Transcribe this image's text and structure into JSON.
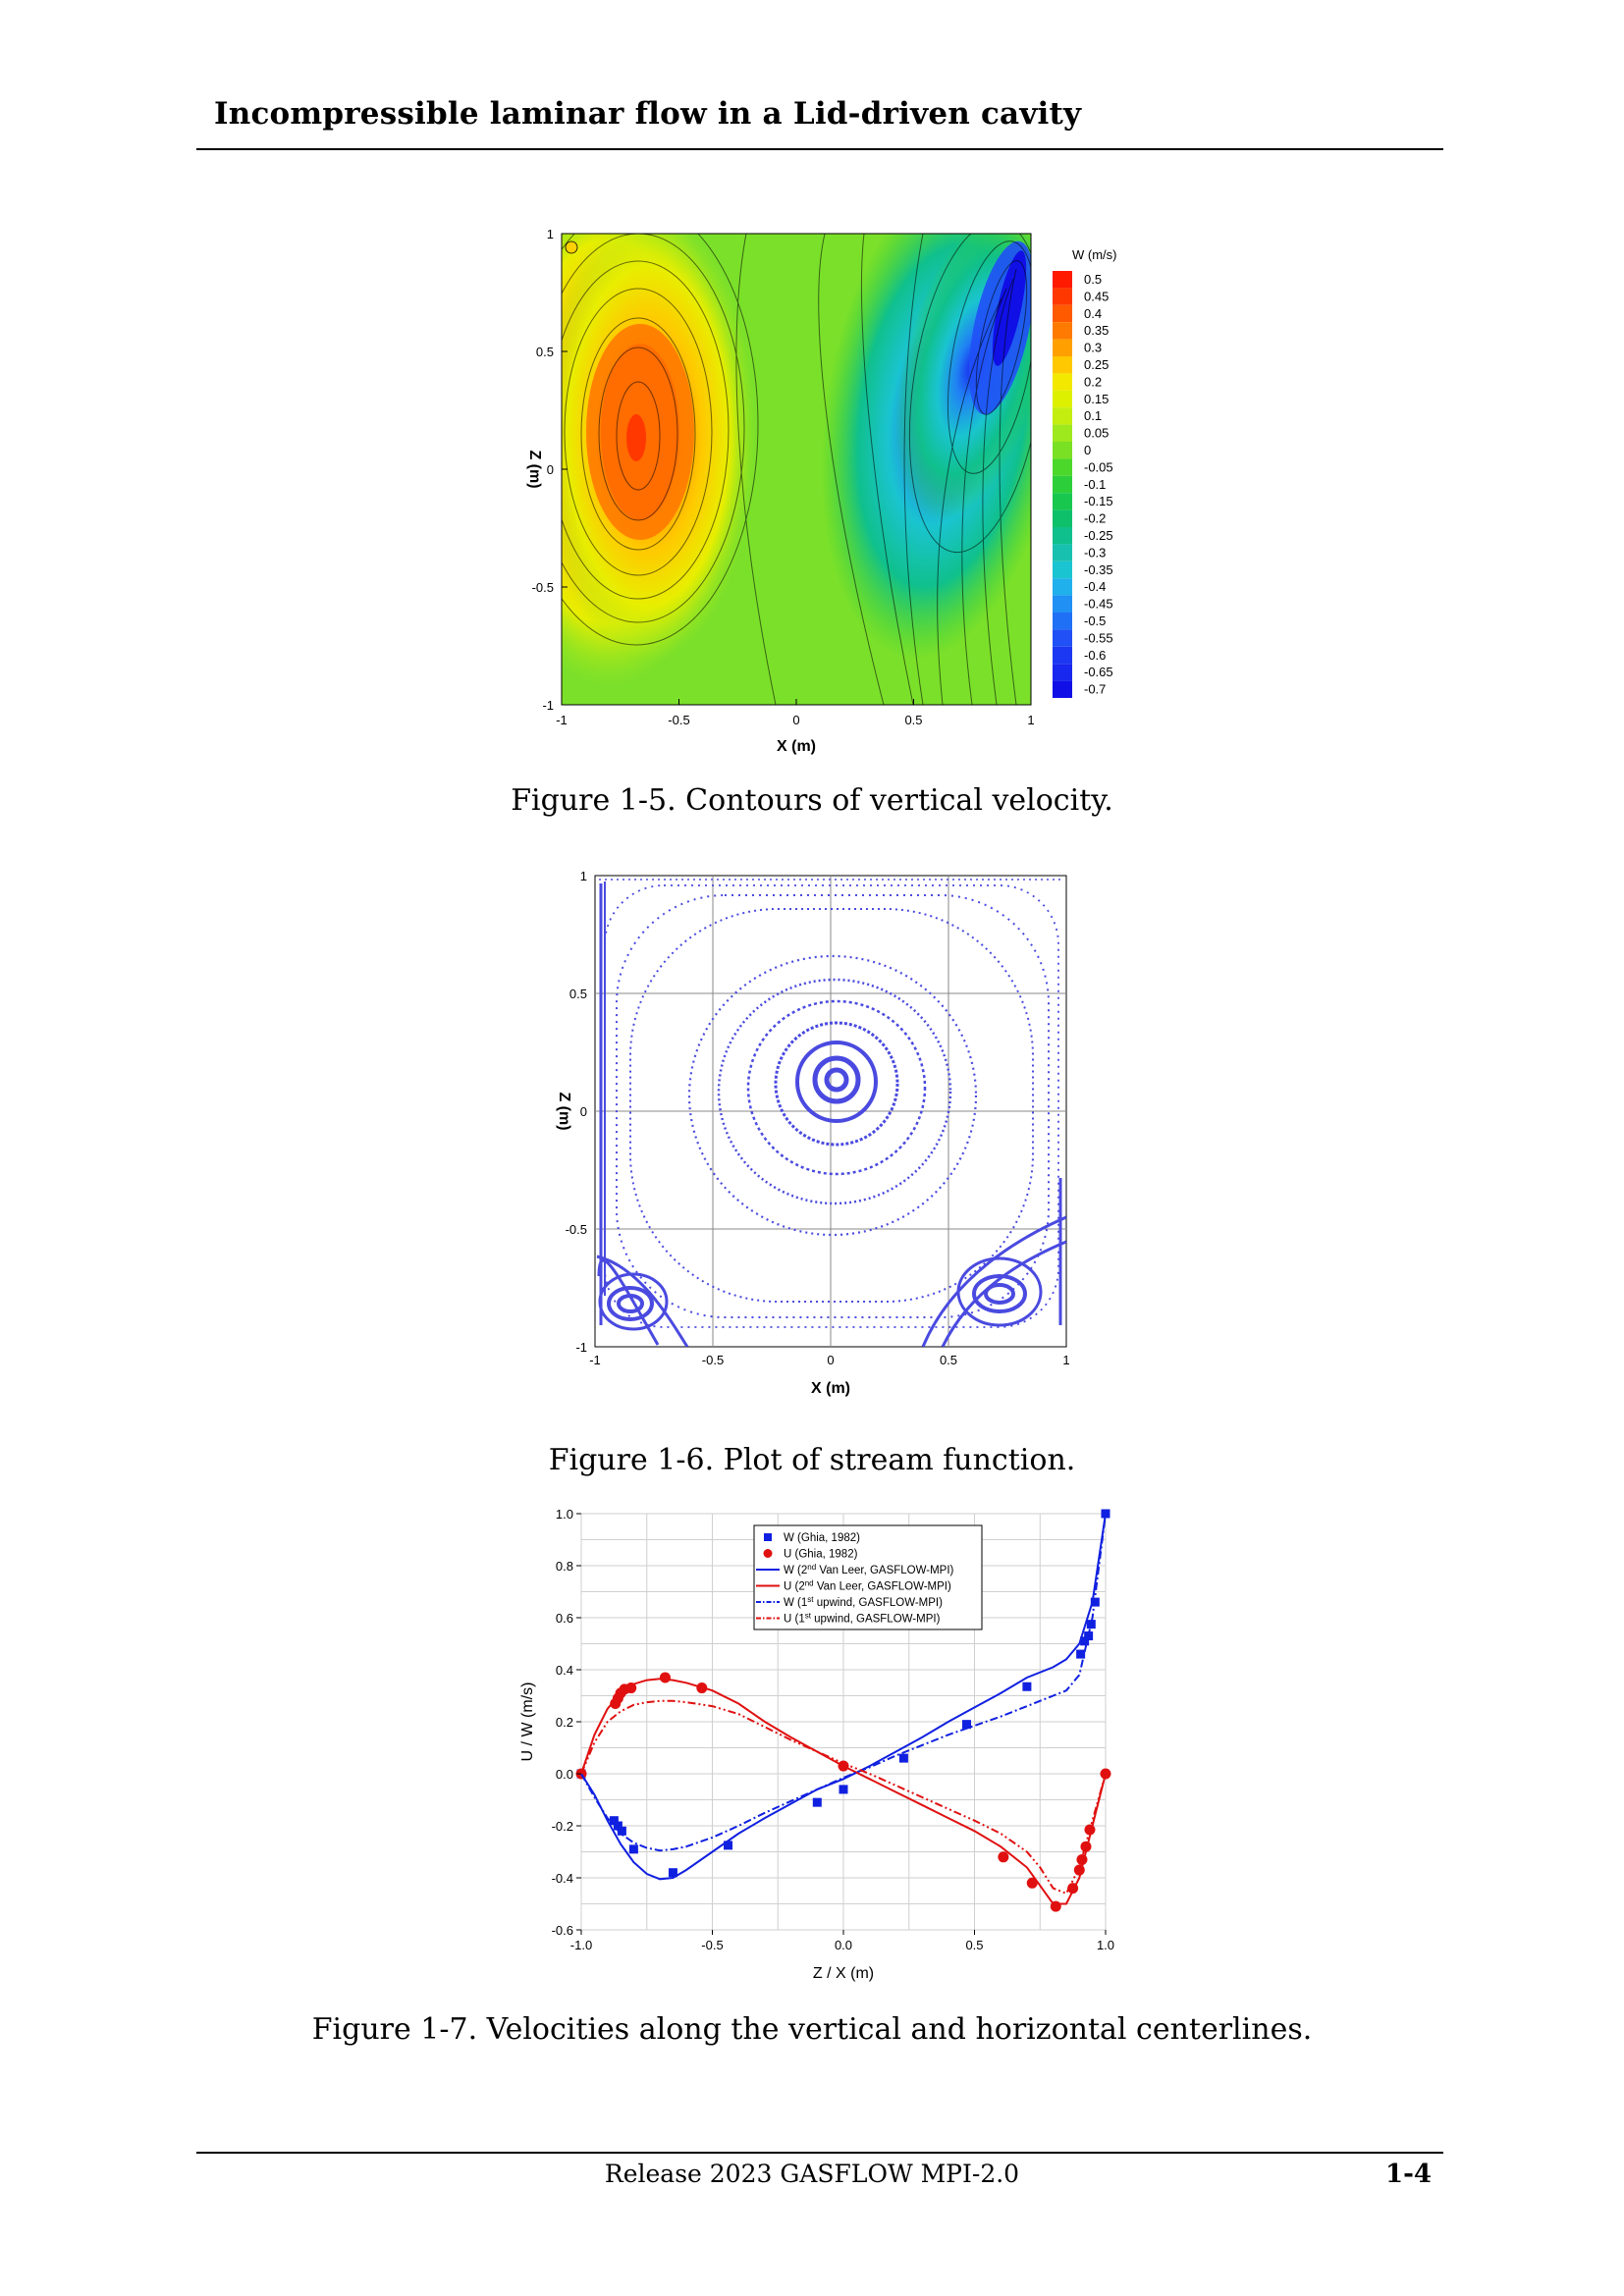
{
  "header": {
    "title": "Incompressible laminar flow in a Lid-driven cavity"
  },
  "figures": [
    {
      "id": "fig-1-5",
      "caption": "Figure 1-5. Contours of vertical velocity.",
      "xlabel": "X (m)",
      "ylabel": "Z (m)",
      "xticks": [
        "-1",
        "-0.5",
        "0",
        "0.5",
        "1"
      ],
      "yticks": [
        "1",
        "0.5",
        "0",
        "-0.5",
        "-1"
      ],
      "legend_title": "W (m/s)",
      "legend_levels": [
        "0.5",
        "0.45",
        "0.4",
        "0.35",
        "0.3",
        "0.25",
        "0.2",
        "0.15",
        "0.1",
        "0.05",
        "0",
        "-0.05",
        "-0.1",
        "-0.15",
        "-0.2",
        "-0.25",
        "-0.3",
        "-0.35",
        "-0.4",
        "-0.45",
        "-0.5",
        "-0.55",
        "-0.6",
        "-0.65",
        "-0.7"
      ],
      "legend_colors": [
        "#ff1a00",
        "#ff3800",
        "#ff5a00",
        "#ff7a00",
        "#ffa000",
        "#ffc800",
        "#f2e800",
        "#ddf000",
        "#c3ee10",
        "#9ee81e",
        "#79e024",
        "#4cd82a",
        "#2ccf3a",
        "#18c84e",
        "#0fc06a",
        "#10c08c",
        "#18c0b0",
        "#1ac4d0",
        "#20b0ec",
        "#2090f4",
        "#2070f6",
        "#2050f6",
        "#1c38f2",
        "#1828ee",
        "#1010e6"
      ]
    },
    {
      "id": "fig-1-6",
      "caption": "Figure 1-6. Plot of stream function.",
      "xlabel": "X (m)",
      "ylabel": "Z (m)",
      "xticks": [
        "-1",
        "-0.5",
        "0",
        "0.5",
        "1"
      ],
      "yticks": [
        "1",
        "0.5",
        "0",
        "-0.5",
        "-1"
      ]
    },
    {
      "id": "fig-1-7",
      "caption": "Figure 1-7. Velocities along the vertical and horizontal centerlines.",
      "xlabel": "Z / X (m)",
      "ylabel": "U / W (m/s)",
      "xticks": [
        "-1.0",
        "-0.5",
        "0.0",
        "0.5",
        "1.0"
      ],
      "yticks": [
        "1.0",
        "0.8",
        "0.6",
        "0.4",
        "0.2",
        "0.0",
        "-0.2",
        "-0.4",
        "-0.6"
      ],
      "legend": [
        {
          "label": "W (Ghia, 1982)",
          "sup": "",
          "rest": "",
          "color": "#1020e0",
          "style": "square"
        },
        {
          "label": "U  (Ghia, 1982)",
          "sup": "",
          "rest": "",
          "color": "#e01010",
          "style": "circle"
        },
        {
          "label": "W (2",
          "sup": "nd",
          "rest": " Van Leer, GASFLOW-MPI)",
          "color": "#1020e0",
          "style": "solid"
        },
        {
          "label": "U  (2",
          "sup": "nd",
          "rest": " Van Leer, GASFLOW-MPI)",
          "color": "#e01010",
          "style": "solid"
        },
        {
          "label": "W (1",
          "sup": "st",
          "rest": " upwind, GASFLOW-MPI)",
          "color": "#1020e0",
          "style": "dashdot"
        },
        {
          "label": "U  (1",
          "sup": "st",
          "rest": " upwind, GASFLOW-MPI)",
          "color": "#e01010",
          "style": "dashdotdot"
        }
      ]
    }
  ],
  "chart_data": [
    {
      "type": "scatter",
      "title": "",
      "xlabel": "Z / X (m)",
      "ylabel": "U / W (m/s)",
      "xlim": [
        -1.0,
        1.0
      ],
      "ylim": [
        -0.6,
        1.0
      ],
      "grid": true,
      "legend_position": "top-center",
      "series": [
        {
          "name": "W (Ghia, 1982)",
          "kind": "marker-square",
          "x": [
            -1.0,
            -0.875,
            -0.86,
            -0.845,
            -0.8,
            -0.65,
            -0.44,
            -0.1,
            -0.0,
            0.23,
            0.47,
            0.7,
            0.905,
            0.92,
            0.935,
            0.945,
            0.96,
            1.0
          ],
          "y": [
            0.0,
            -0.18,
            -0.2,
            -0.22,
            -0.29,
            -0.38,
            -0.275,
            -0.11,
            -0.06,
            0.06,
            0.19,
            0.335,
            0.46,
            0.51,
            0.53,
            0.575,
            0.66,
            1.0
          ]
        },
        {
          "name": "U  (Ghia, 1982)",
          "kind": "marker-circle",
          "x": [
            -1.0,
            -0.87,
            -0.86,
            -0.85,
            -0.835,
            -0.81,
            -0.68,
            -0.54,
            0.0,
            0.61,
            0.72,
            0.81,
            0.875,
            0.9,
            0.91,
            0.925,
            0.94,
            1.0
          ],
          "y": [
            0.0,
            0.27,
            0.29,
            0.31,
            0.325,
            0.33,
            0.37,
            0.33,
            0.03,
            -0.32,
            -0.42,
            -0.51,
            -0.44,
            -0.37,
            -0.33,
            -0.28,
            -0.215,
            0.0
          ]
        },
        {
          "name": "W (2nd Van Leer, GASFLOW-MPI)",
          "kind": "solid",
          "x": [
            -1.0,
            -0.95,
            -0.9,
            -0.85,
            -0.8,
            -0.75,
            -0.7,
            -0.65,
            -0.6,
            -0.5,
            -0.4,
            -0.3,
            -0.2,
            -0.1,
            0.0,
            0.1,
            0.2,
            0.3,
            0.4,
            0.5,
            0.6,
            0.7,
            0.8,
            0.85,
            0.9,
            0.95,
            1.0
          ],
          "y": [
            0.0,
            -0.08,
            -0.18,
            -0.27,
            -0.34,
            -0.385,
            -0.405,
            -0.4,
            -0.37,
            -0.3,
            -0.23,
            -0.17,
            -0.115,
            -0.06,
            -0.02,
            0.03,
            0.085,
            0.14,
            0.2,
            0.255,
            0.31,
            0.37,
            0.41,
            0.44,
            0.5,
            0.66,
            1.0
          ]
        },
        {
          "name": "U  (2nd Van Leer, GASFLOW-MPI)",
          "kind": "solid",
          "x": [
            -1.0,
            -0.95,
            -0.9,
            -0.85,
            -0.8,
            -0.75,
            -0.7,
            -0.65,
            -0.6,
            -0.5,
            -0.4,
            -0.3,
            -0.2,
            -0.1,
            0.0,
            0.1,
            0.2,
            0.3,
            0.4,
            0.5,
            0.6,
            0.7,
            0.75,
            0.8,
            0.85,
            0.9,
            0.95,
            1.0
          ],
          "y": [
            0.0,
            0.15,
            0.25,
            0.31,
            0.345,
            0.36,
            0.365,
            0.36,
            0.35,
            0.32,
            0.27,
            0.2,
            0.14,
            0.085,
            0.03,
            -0.02,
            -0.07,
            -0.12,
            -0.17,
            -0.22,
            -0.28,
            -0.36,
            -0.43,
            -0.5,
            -0.5,
            -0.4,
            -0.2,
            0.0
          ]
        },
        {
          "name": "W (1st upwind, GASFLOW-MPI)",
          "kind": "dashdot",
          "x": [
            -1.0,
            -0.95,
            -0.9,
            -0.85,
            -0.8,
            -0.75,
            -0.7,
            -0.65,
            -0.6,
            -0.5,
            -0.4,
            -0.3,
            -0.2,
            -0.1,
            0.0,
            0.1,
            0.2,
            0.3,
            0.4,
            0.5,
            0.6,
            0.7,
            0.8,
            0.85,
            0.9,
            0.95,
            1.0
          ],
          "y": [
            0.0,
            -0.09,
            -0.17,
            -0.23,
            -0.265,
            -0.285,
            -0.295,
            -0.29,
            -0.28,
            -0.245,
            -0.2,
            -0.15,
            -0.105,
            -0.06,
            -0.015,
            0.025,
            0.07,
            0.11,
            0.15,
            0.185,
            0.22,
            0.26,
            0.3,
            0.32,
            0.38,
            0.6,
            1.0
          ]
        },
        {
          "name": "U  (1st upwind, GASFLOW-MPI)",
          "kind": "dashdotdot",
          "x": [
            -1.0,
            -0.95,
            -0.9,
            -0.85,
            -0.8,
            -0.75,
            -0.7,
            -0.65,
            -0.6,
            -0.5,
            -0.4,
            -0.3,
            -0.2,
            -0.1,
            0.0,
            0.1,
            0.2,
            0.3,
            0.4,
            0.5,
            0.6,
            0.7,
            0.75,
            0.8,
            0.85,
            0.9,
            0.95,
            1.0
          ],
          "y": [
            0.0,
            0.12,
            0.2,
            0.24,
            0.265,
            0.275,
            0.28,
            0.28,
            0.275,
            0.26,
            0.23,
            0.18,
            0.13,
            0.085,
            0.04,
            -0.0,
            -0.045,
            -0.09,
            -0.135,
            -0.18,
            -0.23,
            -0.3,
            -0.36,
            -0.44,
            -0.46,
            -0.36,
            -0.18,
            0.0
          ]
        }
      ]
    }
  ],
  "footer": {
    "release": "Release 2023 GASFLOW MPI-2.0",
    "page": "1-4"
  }
}
